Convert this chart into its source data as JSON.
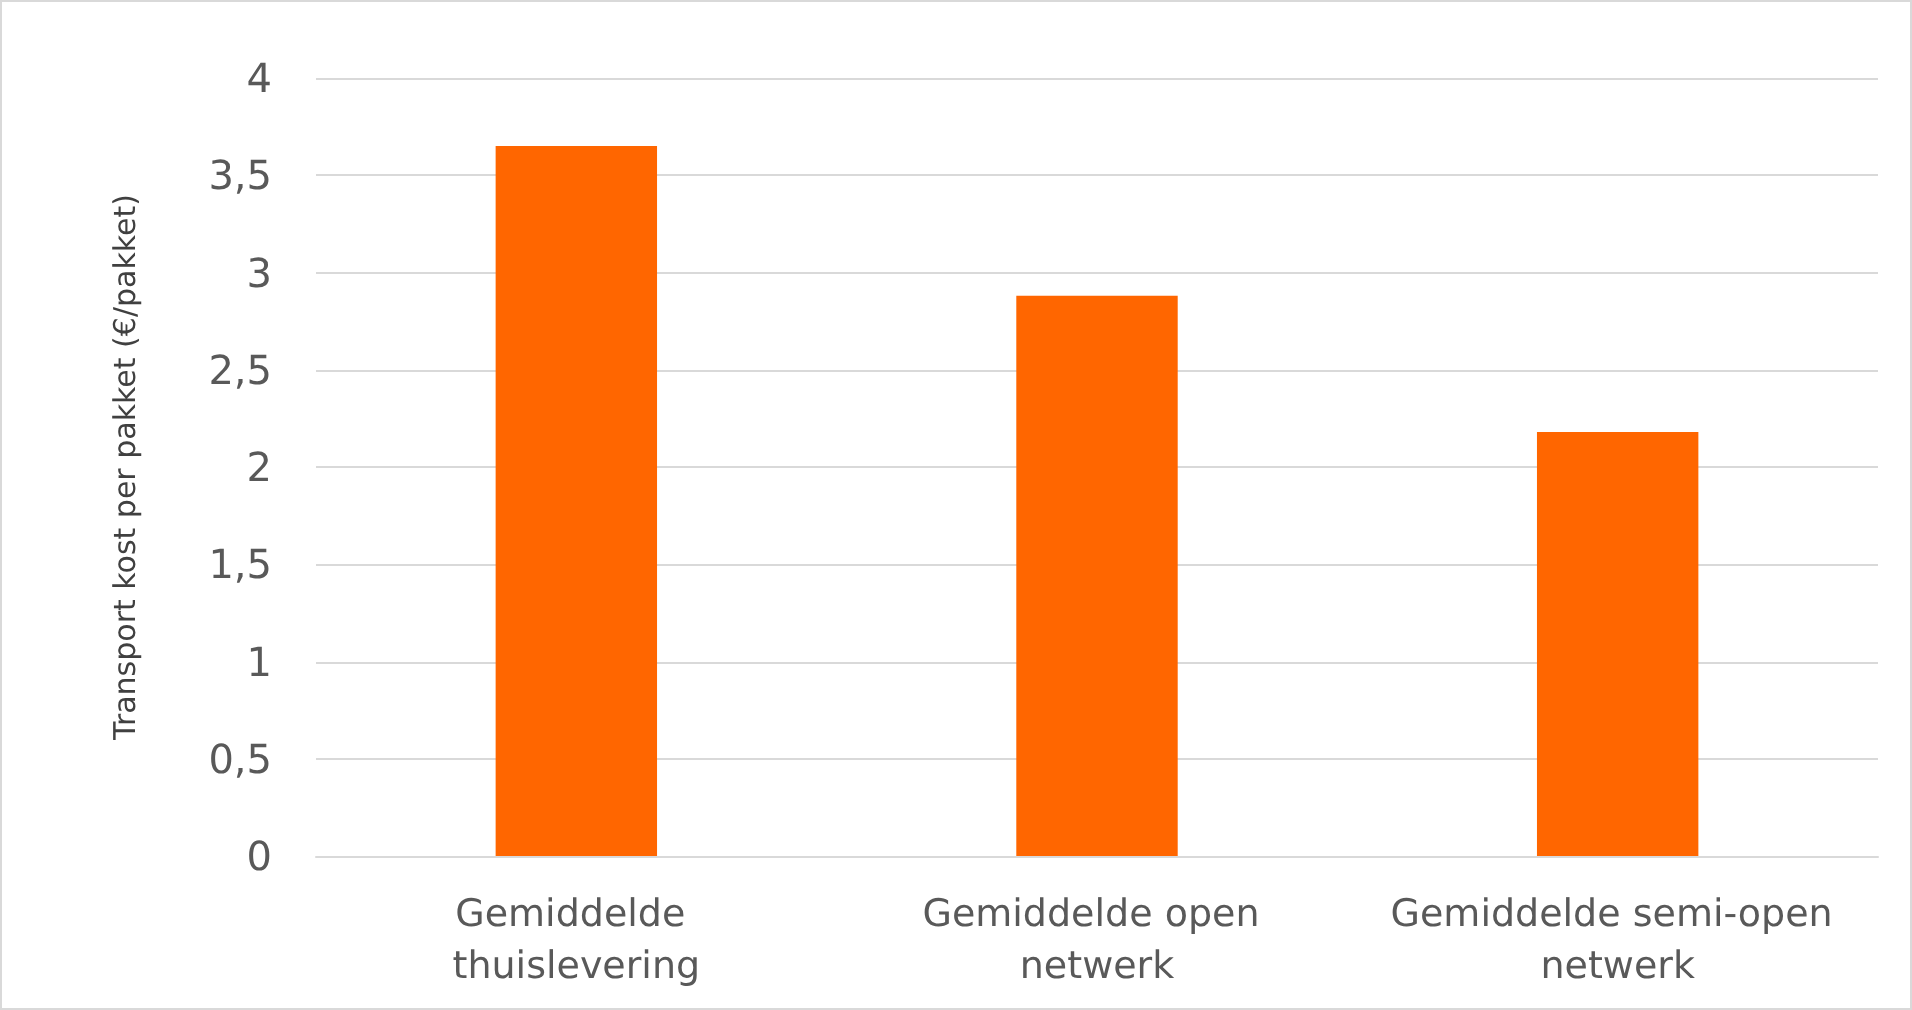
{
  "chart_data": {
    "type": "bar",
    "ylabel": "Transport kost per pakket (€/pakket)",
    "categories": [
      "Gemiddelde thuislevering",
      "Gemiddelde open netwerk",
      "Gemiddelde semi-open netwerk"
    ],
    "values": [
      3.65,
      2.88,
      2.18
    ],
    "color": "#ff6600",
    "ylim": [
      0,
      4
    ],
    "yticks": [
      0,
      {
        "value": 0.5,
        "label": "0,5"
      },
      1,
      {
        "value": 1.5,
        "label": "1,5"
      },
      2,
      {
        "value": 2.5,
        "label": "2,5"
      },
      3,
      {
        "value": 3.5,
        "label": "3,5"
      },
      4
    ],
    "grid": "y"
  }
}
